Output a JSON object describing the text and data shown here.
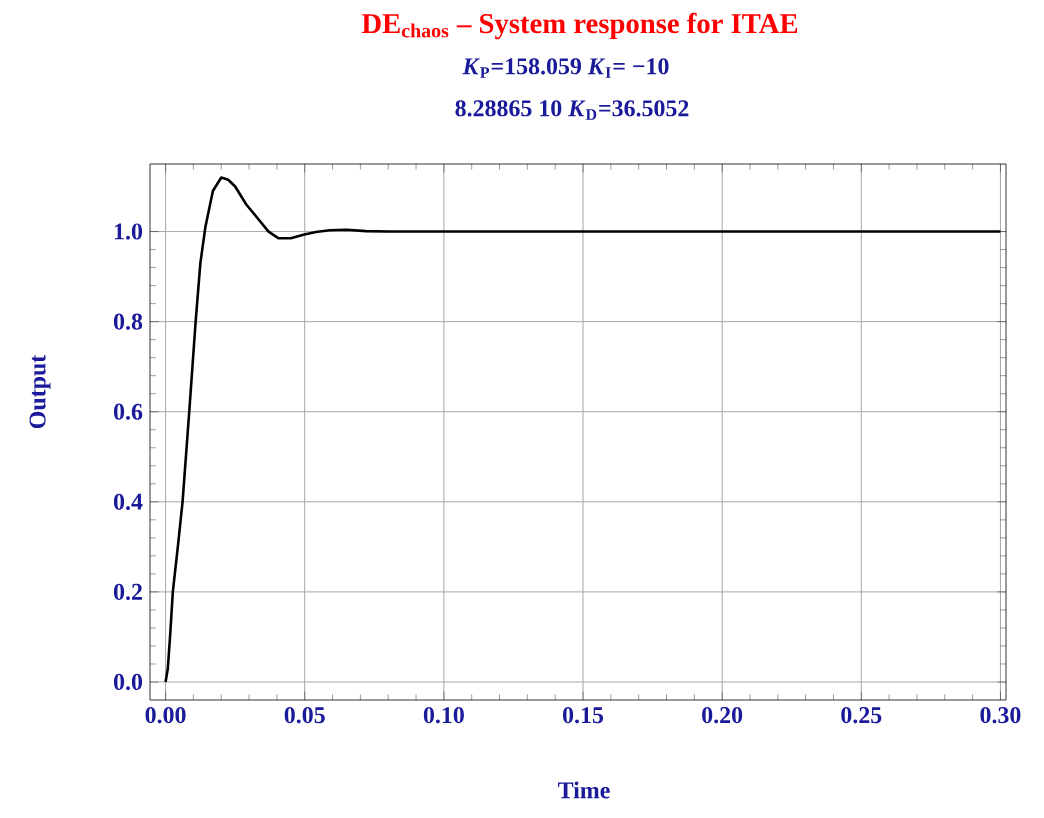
{
  "chart_data": {
    "type": "line",
    "title": "DE$_{chaos}$ – System response for ITAE",
    "subtitle": "*K*$_{P}$=158.059   *K*$_{I}$=  −10",
    "annotations": [
      "8.28865 10   *K*$_{D}$=36.5052"
    ],
    "xlabel": "Time",
    "ylabel": "Output",
    "x": [
      0,
      0.0008,
      0.0016,
      0.0026,
      0.0044,
      0.0061,
      0.0085,
      0.0108,
      0.0125,
      0.0143,
      0.017,
      0.02,
      0.0225,
      0.025,
      0.029,
      0.033,
      0.037,
      0.0406,
      0.045,
      0.0495,
      0.054,
      0.059,
      0.065,
      0.072,
      0.08,
      0.1,
      0.15,
      0.2,
      0.25,
      0.3
    ],
    "series": [
      {
        "color": "#000000",
        "values": [
          0,
          0.03,
          0.1,
          0.2,
          0.3,
          0.4,
          0.6,
          0.8,
          0.93,
          1.01,
          1.09,
          1.12,
          1.115,
          1.1,
          1.06,
          1.03,
          1.0,
          0.985,
          0.985,
          0.993,
          0.999,
          1.003,
          1.004,
          1.001,
          1.0,
          1.0,
          1.0,
          1.0,
          1.0,
          1.0
        ]
      }
    ],
    "xlim": [
      -0.0056,
      0.302
    ],
    "ylim": [
      -0.04,
      1.15
    ],
    "xticks": [
      {
        "value": 0,
        "label": "0.00"
      },
      {
        "value": 0.05,
        "label": "0.05"
      },
      {
        "value": 0.1,
        "label": "0.10"
      },
      {
        "value": 0.15,
        "label": "0.15"
      },
      {
        "value": 0.2,
        "label": "0.20"
      },
      {
        "value": 0.25,
        "label": "0.25"
      },
      {
        "value": 0.3,
        "label": "0.30"
      }
    ],
    "yticks": [
      {
        "value": 0,
        "label": "0.0"
      },
      {
        "value": 0.2,
        "label": "0.2"
      },
      {
        "value": 0.4,
        "label": "0.4"
      },
      {
        "value": 0.6,
        "label": "0.6"
      },
      {
        "value": 0.8,
        "label": "0.8"
      },
      {
        "value": 1,
        "label": "1.0"
      }
    ],
    "grid": true,
    "marker": "none",
    "line_style": "solid"
  }
}
